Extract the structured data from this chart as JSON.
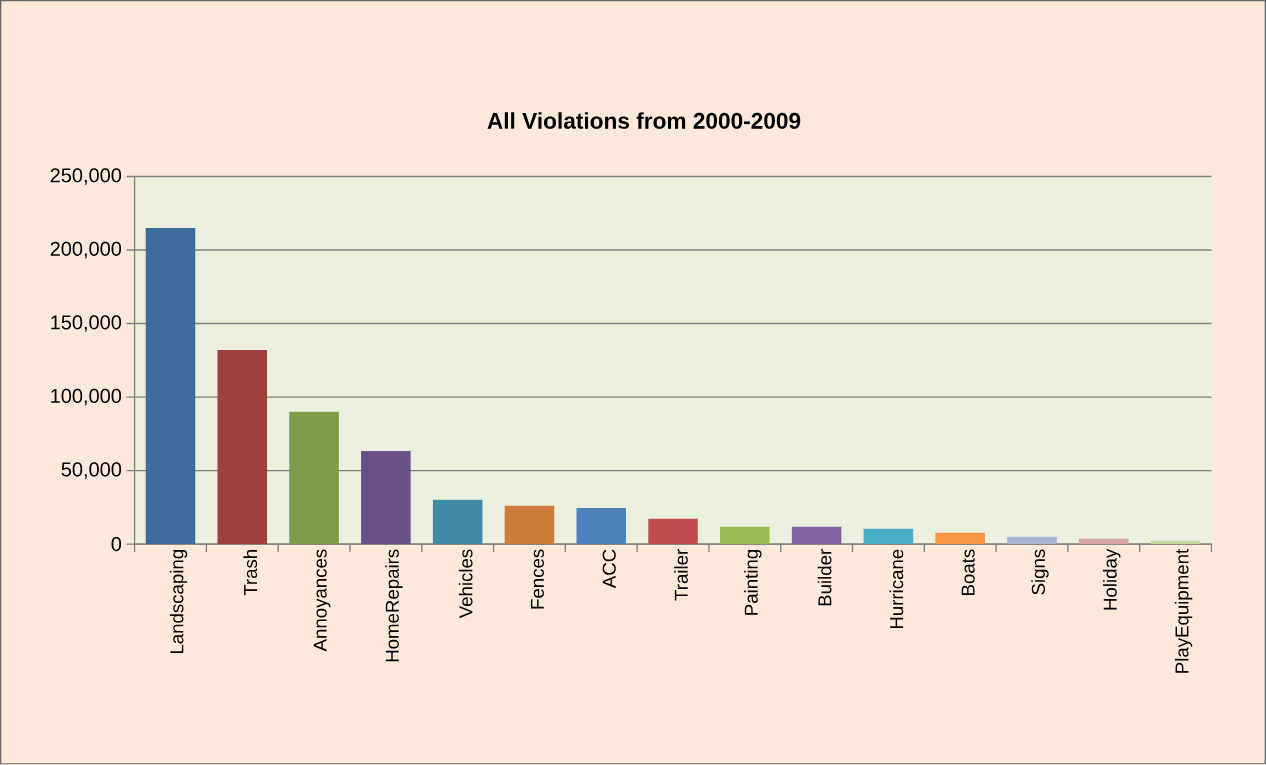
{
  "chart_data": {
    "type": "bar",
    "title": "All Violations from 2000-2009",
    "categories": [
      "Landscaping",
      "Trash",
      "Annoyances",
      "HomeRepairs",
      "Vehicles",
      "Fences",
      "ACC",
      "Trailer",
      "Painting",
      "Builder",
      "Hurricane",
      "Boats",
      "Signs",
      "Holiday",
      "PlayEquipment"
    ],
    "values": [
      215000,
      132000,
      90000,
      63300,
      30100,
      26000,
      24500,
      17300,
      11800,
      11800,
      10500,
      7800,
      5000,
      3700,
      2300
    ],
    "colors": [
      "#3f6a9d",
      "#9e403d",
      "#7f9a48",
      "#6a5088",
      "#3e8ca6",
      "#cc7b38",
      "#4f81bd",
      "#c0504d",
      "#9bbb59",
      "#8064a2",
      "#4bacc6",
      "#f79646",
      "#a5b4d6",
      "#d7a5a4",
      "#c4d6a2"
    ],
    "ylim": [
      0,
      250000
    ],
    "yticks": [
      {
        "value": 0,
        "label": "0"
      },
      {
        "value": 50000,
        "label": "50,000"
      },
      {
        "value": 100000,
        "label": "100,000"
      },
      {
        "value": 150000,
        "label": "150,000"
      },
      {
        "value": 200000,
        "label": "200,000"
      },
      {
        "value": 250000,
        "label": "250,000"
      }
    ],
    "grid": "y"
  }
}
